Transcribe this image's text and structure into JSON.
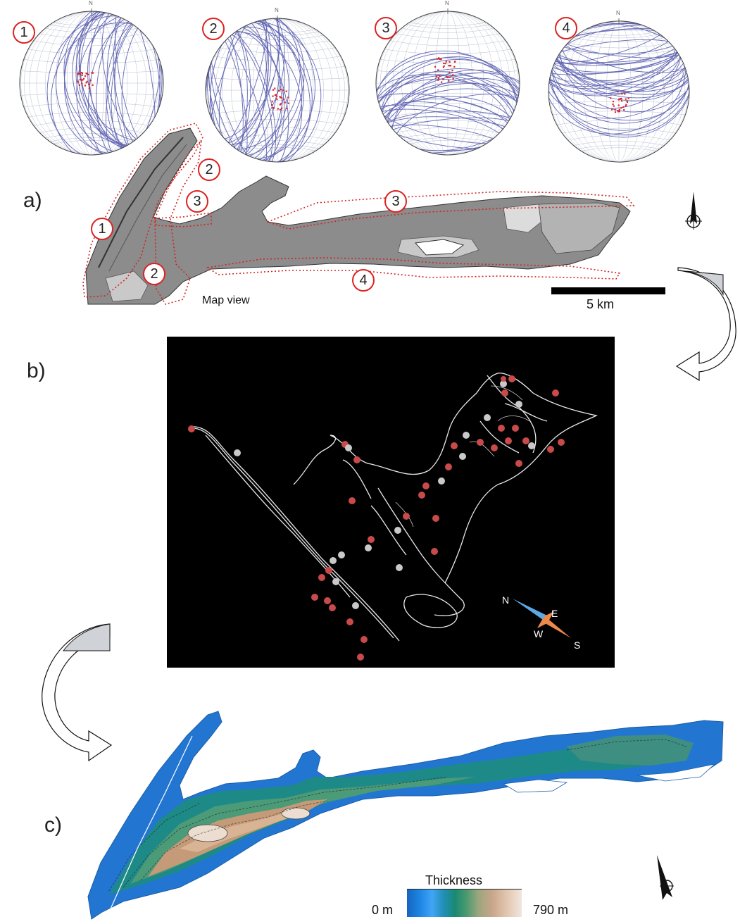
{
  "panels": {
    "a": {
      "letter": "a)",
      "map_view_label": "Map view",
      "scale_label": "5 km"
    },
    "b": {
      "letter": "b)"
    },
    "c": {
      "letter": "c)"
    }
  },
  "stereonets": [
    {
      "number": "1",
      "north": "N"
    },
    {
      "number": "2",
      "north": "N"
    },
    {
      "number": "3",
      "north": "N"
    },
    {
      "number": "4",
      "north": "N"
    }
  ],
  "map_region_labels": [
    "2",
    "3",
    "1",
    "3",
    "2",
    "4"
  ],
  "compass_b": {
    "n": "N",
    "e": "E",
    "w": "W",
    "s": "S"
  },
  "thickness_legend": {
    "title": "Thickness",
    "min_label": "0 m",
    "max_label": "790 m"
  },
  "colors": {
    "plane_line": "#4a4fa8",
    "pole_dot": "#d8262a",
    "region_outline": "#d22222",
    "map_fill": "#8c8c8c",
    "compass_n": "#5aa9e6",
    "compass_s": "#ec8a4b"
  }
}
